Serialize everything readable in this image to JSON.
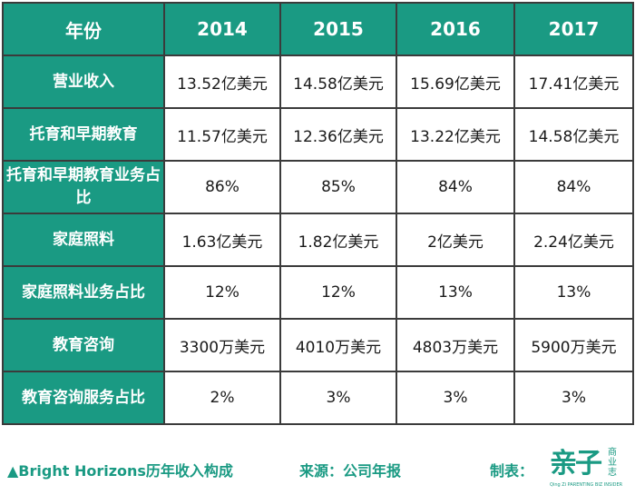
{
  "table": {
    "header": [
      "年份",
      "2014",
      "2015",
      "2016",
      "2017"
    ],
    "rows": [
      {
        "label": "营业收入",
        "cells": [
          "13.52亿美元",
          "14.58亿美元",
          "15.69亿美元",
          "17.41亿美元"
        ]
      },
      {
        "label": "托育和早期教育",
        "cells": [
          "11.57亿美元",
          "12.36亿美元",
          "13.22亿美元",
          "14.58亿美元"
        ]
      },
      {
        "label": "托育和早期教育业务占比",
        "cells": [
          "86%",
          "85%",
          "84%",
          "84%"
        ]
      },
      {
        "label": "家庭照料",
        "cells": [
          "1.63亿美元",
          "1.82亿美元",
          "2亿美元",
          "2.24亿美元"
        ]
      },
      {
        "label": "家庭照料业务占比",
        "cells": [
          "12%",
          "12%",
          "13%",
          "13%"
        ]
      },
      {
        "label": "教育咨询",
        "cells": [
          "3300万美元",
          "4010万美元",
          "4803万美元",
          "5900万美元"
        ]
      },
      {
        "label": "教育咨询服务占比",
        "cells": [
          "2%",
          "3%",
          "3%",
          "3%"
        ]
      }
    ]
  },
  "footer": {
    "title": "▲Bright Horizons历年收入构成",
    "source": "来源：公司年报",
    "maker_label": "制表：",
    "logo_main": "亲子",
    "logo_side": "商业志",
    "logo_sub": "Qing Zi PARENTING BIZ INSIDER"
  },
  "colors": {
    "accent": "#1a9a83",
    "border": "#3b3b3b"
  }
}
